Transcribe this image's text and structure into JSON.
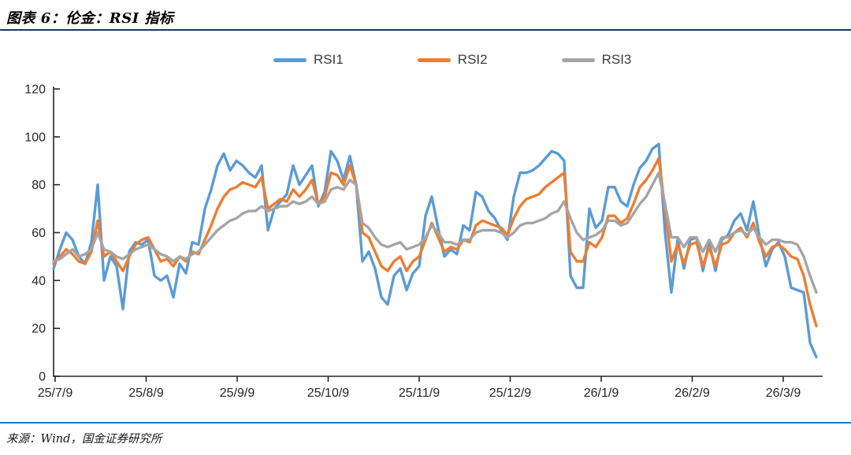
{
  "header": {
    "title": "图表 6：伦金：RSI 指标"
  },
  "legend": {
    "items": [
      {
        "label": "RSI1",
        "color": "#5b9bd5"
      },
      {
        "label": "RSI2",
        "color": "#ed7d31"
      },
      {
        "label": "RSI3",
        "color": "#a5a5a5"
      }
    ]
  },
  "footer": {
    "source": "来源：Wind，国金证券研究所"
  },
  "chart_data": {
    "type": "line",
    "title": "伦金 RSI 指标",
    "xlabel": "",
    "ylabel": "",
    "ylim": [
      0,
      120
    ],
    "grid": false,
    "legend_position": "top",
    "x_axis": {
      "tick_labels": [
        "25/7/9",
        "25/8/9",
        "25/9/9",
        "25/10/9",
        "25/11/9",
        "25/12/9",
        "26/1/9",
        "26/2/9",
        "26/3/9"
      ]
    },
    "y_axis": {
      "ticks": [
        0,
        20,
        40,
        60,
        80,
        100,
        120
      ]
    },
    "axis_color": "#262626",
    "tick_label_color": "#262626",
    "series": [
      {
        "name": "RSI1",
        "color": "#5b9bd5",
        "values": [
          45,
          53,
          60,
          57,
          50,
          47,
          56,
          80,
          40,
          50,
          46,
          28,
          52,
          56,
          55,
          57,
          42,
          40,
          42,
          33,
          47,
          43,
          56,
          55,
          70,
          78,
          88,
          93,
          86,
          90,
          88,
          85,
          83,
          88,
          61,
          70,
          73,
          76,
          88,
          80,
          84,
          88,
          71,
          77,
          94,
          90,
          82,
          92,
          80,
          48,
          52,
          45,
          33,
          30,
          42,
          45,
          36,
          43,
          46,
          67,
          75,
          62,
          50,
          53,
          51,
          63,
          61,
          77,
          75,
          69,
          66,
          61,
          57,
          75,
          85,
          85,
          86,
          88,
          91,
          94,
          93,
          90,
          42,
          37,
          37,
          70,
          62,
          65,
          79,
          79,
          73,
          71,
          80,
          87,
          90,
          95,
          97,
          60,
          35,
          57,
          45,
          57,
          58,
          44,
          56,
          44,
          57,
          59,
          65,
          68,
          61,
          73,
          58,
          46,
          53,
          56,
          50,
          37,
          36,
          35,
          14,
          8
        ]
      },
      {
        "name": "RSI2",
        "color": "#ed7d31",
        "values": [
          47,
          50,
          53,
          51,
          48,
          47,
          52,
          65,
          50,
          52,
          48,
          44,
          50,
          55,
          57,
          58,
          53,
          48,
          49,
          46,
          50,
          48,
          52,
          51,
          57,
          63,
          70,
          75,
          78,
          79,
          81,
          80,
          79,
          83,
          70,
          72,
          74,
          73,
          78,
          75,
          78,
          82,
          72,
          75,
          85,
          84,
          80,
          88,
          80,
          60,
          58,
          52,
          46,
          44,
          48,
          50,
          44,
          48,
          50,
          57,
          64,
          58,
          52,
          54,
          53,
          57,
          56,
          63,
          65,
          64,
          63,
          62,
          59,
          66,
          71,
          74,
          75,
          76,
          79,
          81,
          83,
          85,
          52,
          48,
          48,
          56,
          54,
          58,
          67,
          67,
          64,
          66,
          72,
          79,
          82,
          86,
          91,
          70,
          48,
          55,
          47,
          55,
          56,
          46,
          54,
          46,
          55,
          56,
          60,
          62,
          58,
          64,
          56,
          50,
          54,
          55,
          53,
          50,
          49,
          42,
          30,
          21
        ]
      },
      {
        "name": "RSI3",
        "color": "#a5a5a5",
        "values": [
          48,
          49,
          51,
          53,
          50,
          51,
          53,
          60,
          53,
          52,
          50,
          49,
          51,
          53,
          54,
          55,
          53,
          51,
          50,
          48,
          50,
          49,
          51,
          52,
          55,
          58,
          61,
          63,
          65,
          66,
          68,
          69,
          69,
          71,
          69,
          70,
          71,
          71,
          73,
          72,
          73,
          75,
          72,
          73,
          78,
          79,
          78,
          82,
          80,
          64,
          62,
          58,
          55,
          54,
          55,
          56,
          53,
          54,
          55,
          58,
          63,
          60,
          56,
          56,
          55,
          57,
          57,
          60,
          61,
          61,
          61,
          60,
          58,
          60,
          63,
          64,
          64,
          65,
          66,
          68,
          69,
          73,
          66,
          60,
          57,
          58,
          59,
          61,
          65,
          65,
          63,
          64,
          68,
          72,
          75,
          80,
          85,
          72,
          58,
          58,
          54,
          58,
          58,
          52,
          57,
          52,
          58,
          58,
          60,
          61,
          59,
          62,
          58,
          55,
          57,
          57,
          56,
          56,
          55,
          50,
          42,
          35
        ]
      }
    ]
  }
}
